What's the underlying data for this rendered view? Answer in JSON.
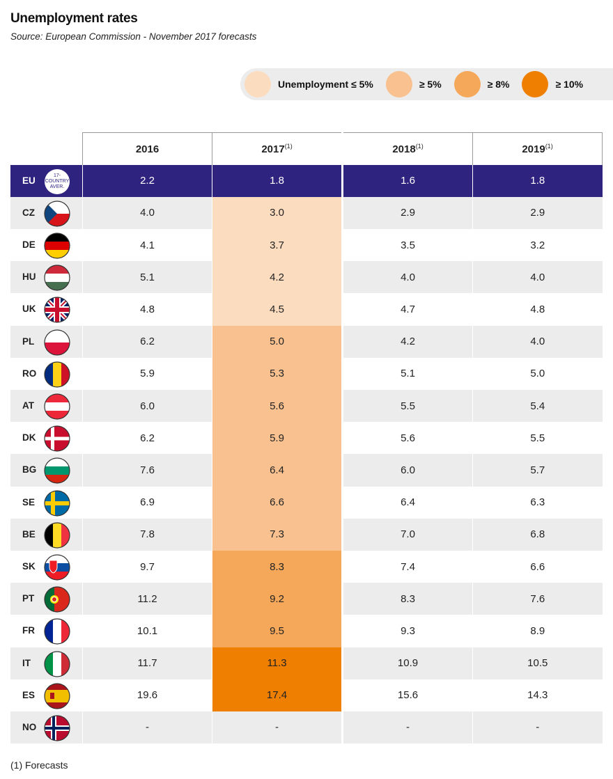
{
  "title": "Unemployment rates",
  "source": "Source: European Commission - November 2017 forecasts",
  "legend": [
    {
      "label": "Unemployment ≤ 5%",
      "color": "#fcdcbf"
    },
    {
      "label": "≥ 5%",
      "color": "#f9c18f"
    },
    {
      "label": "≥ 8%",
      "color": "#f5a85a"
    },
    {
      "label": "≥ 10%",
      "color": "#ee7f00"
    }
  ],
  "footnote": "(1) Forecasts",
  "eu_badge": "17-COUNTRY AVER.",
  "colors": {
    "navy": "#2e2480",
    "gray": "#ececec"
  },
  "chart_data": {
    "type": "table",
    "title": "Unemployment rates",
    "columns": [
      "2016",
      "2017",
      "2018",
      "2019"
    ],
    "column_superscripts": [
      "",
      "(1)",
      "(1)",
      "(1)"
    ],
    "rows": [
      {
        "code": "EU",
        "values": [
          "2.2",
          "1.8",
          "1.6",
          "1.8"
        ]
      },
      {
        "code": "CZ",
        "values": [
          "4.0",
          "3.0",
          "2.9",
          "2.9"
        ]
      },
      {
        "code": "DE",
        "values": [
          "4.1",
          "3.7",
          "3.5",
          "3.2"
        ]
      },
      {
        "code": "HU",
        "values": [
          "5.1",
          "4.2",
          "4.0",
          "4.0"
        ]
      },
      {
        "code": "UK",
        "values": [
          "4.8",
          "4.5",
          "4.7",
          "4.8"
        ]
      },
      {
        "code": "PL",
        "values": [
          "6.2",
          "5.0",
          "4.2",
          "4.0"
        ]
      },
      {
        "code": "RO",
        "values": [
          "5.9",
          "5.3",
          "5.1",
          "5.0"
        ]
      },
      {
        "code": "AT",
        "values": [
          "6.0",
          "5.6",
          "5.5",
          "5.4"
        ]
      },
      {
        "code": "DK",
        "values": [
          "6.2",
          "5.9",
          "5.6",
          "5.5"
        ]
      },
      {
        "code": "BG",
        "values": [
          "7.6",
          "6.4",
          "6.0",
          "5.7"
        ]
      },
      {
        "code": "SE",
        "values": [
          "6.9",
          "6.6",
          "6.4",
          "6.3"
        ]
      },
      {
        "code": "BE",
        "values": [
          "7.8",
          "7.3",
          "7.0",
          "6.8"
        ]
      },
      {
        "code": "SK",
        "values": [
          "9.7",
          "8.3",
          "7.4",
          "6.6"
        ]
      },
      {
        "code": "PT",
        "values": [
          "11.2",
          "9.2",
          "8.3",
          "7.6"
        ]
      },
      {
        "code": "FR",
        "values": [
          "10.1",
          "9.5",
          "9.3",
          "8.9"
        ]
      },
      {
        "code": "IT",
        "values": [
          "11.7",
          "11.3",
          "10.9",
          "10.5"
        ]
      },
      {
        "code": "ES",
        "values": [
          "19.6",
          "17.4",
          "15.6",
          "14.3"
        ]
      },
      {
        "code": "NO",
        "values": [
          "-",
          "-",
          "-",
          "-"
        ]
      }
    ],
    "highlight_column": "2017"
  }
}
